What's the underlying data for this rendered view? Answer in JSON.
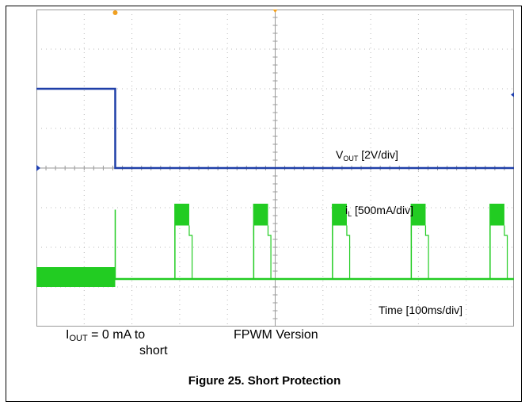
{
  "chart_data": {
    "type": "oscilloscope",
    "grid": true,
    "xlim": [
      0,
      1000
    ],
    "x_unit": "ms",
    "x_divisions": 10,
    "y_divisions": 8,
    "series": [
      {
        "name": "VOUT",
        "scale_label": "[2V/div]",
        "label_main": "V",
        "label_sub": "OUT",
        "color": "#1f3fa8",
        "high_level_div": 2.0,
        "low_level_div": 0.0,
        "short_time": 165
      },
      {
        "name": "iL",
        "scale_label": "[500mA/div]",
        "label_main": "i",
        "label_sub": "L",
        "color": "#22cc22",
        "pre_short_band_div": [
          0.0,
          0.35
        ],
        "spike_time": 165,
        "spike_level_div": 1.8,
        "pulse_starts": [
          290,
          455,
          620,
          785,
          950
        ],
        "pulse_width": 30,
        "pulse_peak_div": [
          1.7,
          1.95
        ],
        "pulse_base_div": 1.15,
        "baseline_div": 0.05
      }
    ],
    "time_label": "Time [100ms/div]"
  },
  "annotations": {
    "iout_main": "I",
    "iout_sub": "OUT",
    "iout_rest": " = 0 mA to",
    "iout_line2": "short",
    "version": "FPWM Version"
  },
  "caption": "Figure 25. Short Protection",
  "colors": {
    "marker_orange": "#f0a020",
    "marker_blue": "#2040b0",
    "marker_green": "#22cc22"
  }
}
